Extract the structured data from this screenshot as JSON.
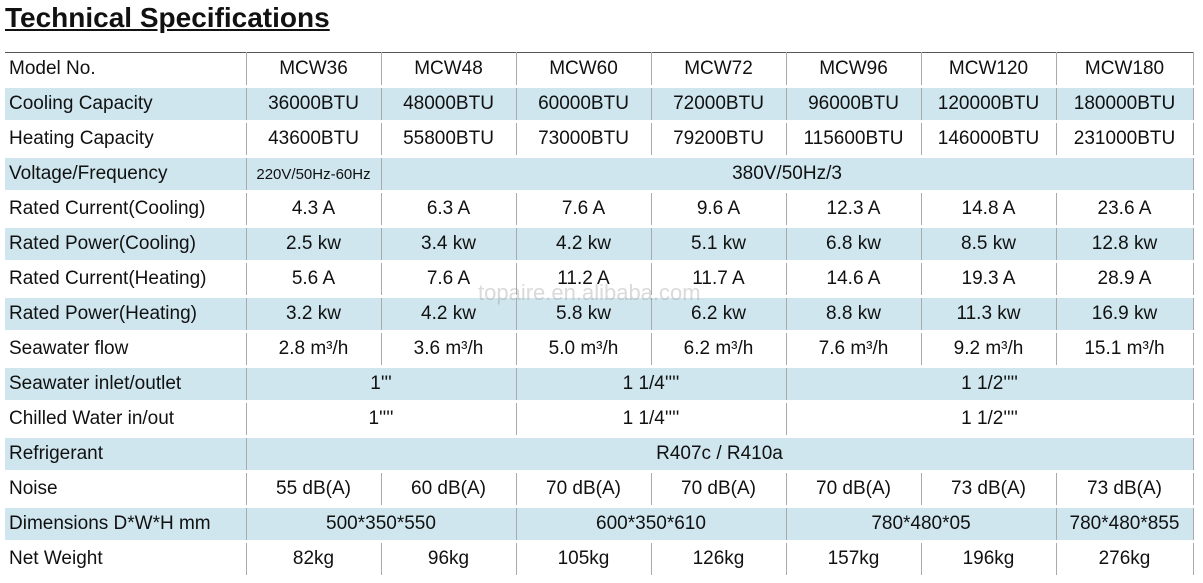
{
  "header": {
    "title": "Technical Specifications"
  },
  "watermark": "topaire.en.alibaba.com",
  "table": {
    "rows": [
      [
        "Model No.",
        "MCW36",
        "MCW48",
        "MCW60",
        "MCW72",
        "MCW96",
        "MCW120",
        "MCW180"
      ],
      [
        "Cooling Capacity",
        "36000BTU",
        "48000BTU",
        "60000BTU",
        "72000BTU",
        "96000BTU",
        "120000BTU",
        "180000BTU"
      ],
      [
        "Heating Capacity",
        "43600BTU",
        "55800BTU",
        "73000BTU",
        "79200BTU",
        "115600BTU",
        "146000BTU",
        "231000BTU"
      ],
      [
        "Voltage/Frequency",
        "220V/50Hz-60Hz",
        "380V/50Hz/3"
      ],
      [
        "Rated Current(Cooling)",
        "4.3 A",
        "6.3 A",
        "7.6 A",
        "9.6 A",
        "12.3 A",
        "14.8 A",
        "23.6 A"
      ],
      [
        "Rated Power(Cooling)",
        "2.5 kw",
        "3.4 kw",
        "4.2 kw",
        "5.1 kw",
        "6.8 kw",
        "8.5 kw",
        "12.8 kw"
      ],
      [
        "Rated Current(Heating)",
        "5.6 A",
        "7.6 A",
        "11.2 A",
        "11.7 A",
        "14.6 A",
        "19.3 A",
        "28.9 A"
      ],
      [
        "Rated Power(Heating)",
        "3.2 kw",
        "4.2 kw",
        "5.8 kw",
        "6.2 kw",
        "8.8 kw",
        "11.3 kw",
        "16.9 kw"
      ],
      [
        "Seawater flow",
        "2.8 m³/h",
        "3.6 m³/h",
        "5.0 m³/h",
        "6.2 m³/h",
        "7.6 m³/h",
        "9.2 m³/h",
        "15.1 m³/h"
      ],
      [
        "Seawater inlet/outlet",
        "1'''",
        "1 1/4''''",
        "1 1/2''''"
      ],
      [
        "Chilled Water in/out",
        "1''''",
        "1 1/4''''",
        "1 1/2''''"
      ],
      [
        "Refrigerant",
        "R407c / R410a"
      ],
      [
        "Noise",
        "55 dB(A)",
        "60 dB(A)",
        "70 dB(A)",
        "70 dB(A)",
        "70 dB(A)",
        "73 dB(A)",
        "73 dB(A)"
      ],
      [
        "Dimensions D*W*H mm",
        "500*350*550",
        "600*350*610",
        "780*480*05",
        "780*480*855"
      ],
      [
        "Net Weight",
        "82kg",
        "96kg",
        "105kg",
        "126kg",
        "157kg",
        "196kg",
        "276kg"
      ]
    ]
  }
}
